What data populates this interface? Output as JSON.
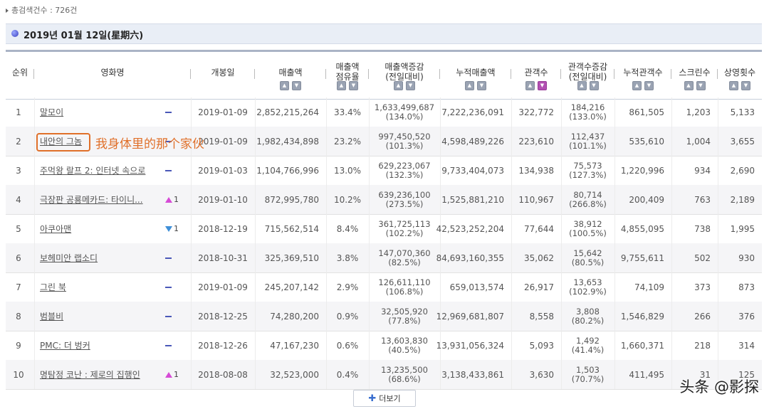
{
  "summary": {
    "total_label": "총검색건수 : 726건"
  },
  "date_header": "2019년 01월 12일(星期六)",
  "columns": {
    "rank": "순위",
    "movie": "영화명",
    "open": "개봉일",
    "sales": "매출액",
    "share_l1": "매출액",
    "share_l2": "점유율",
    "salesdiff_l1": "매출액증감",
    "salesdiff_l2": "(전일대비)",
    "cumsales": "누적매출액",
    "audience": "관객수",
    "auddiff_l1": "관객수증감",
    "auddiff_l2": "(전일대비)",
    "cumaudience": "누적관객수",
    "screens": "스크린수",
    "shows": "상영횟수"
  },
  "rows": [
    {
      "rank": "1",
      "movie": "말모이",
      "change": "",
      "change_dir": "none",
      "open": "2019-01-09",
      "sales": "2,852,215,264",
      "share": "33.4%",
      "sales_diff": "1,633,499,687",
      "sales_diff_pct": "(134.0%)",
      "cum_sales": "7,222,236,091",
      "audience": "322,772",
      "aud_diff": "184,216",
      "aud_diff_pct": "(133.0%)",
      "cum_audience": "861,505",
      "screens": "1,203",
      "shows": "5,133"
    },
    {
      "rank": "2",
      "movie": "내안의 그놈",
      "change": "",
      "change_dir": "none",
      "open": "2019-01-09",
      "sales": "1,982,434,898",
      "share": "23.2%",
      "sales_diff": "997,450,520",
      "sales_diff_pct": "(101.3%)",
      "cum_sales": "4,598,489,226",
      "audience": "223,610",
      "aud_diff": "112,437",
      "aud_diff_pct": "(101.1%)",
      "cum_audience": "535,610",
      "screens": "1,004",
      "shows": "3,655"
    },
    {
      "rank": "3",
      "movie": "주먹왕 랄프 2: 인터넷 속으로",
      "change": "",
      "change_dir": "none",
      "open": "2019-01-03",
      "sales": "1,104,766,996",
      "share": "13.0%",
      "sales_diff": "629,223,067",
      "sales_diff_pct": "(132.3%)",
      "cum_sales": "9,733,404,073",
      "audience": "134,938",
      "aud_diff": "75,573",
      "aud_diff_pct": "(127.3%)",
      "cum_audience": "1,220,996",
      "screens": "934",
      "shows": "2,690"
    },
    {
      "rank": "4",
      "movie": "극장판 공룡메카드: 타이니...",
      "change": "1",
      "change_dir": "up",
      "open": "2019-01-10",
      "sales": "872,995,780",
      "share": "10.2%",
      "sales_diff": "639,236,100",
      "sales_diff_pct": "(273.5%)",
      "cum_sales": "1,525,881,210",
      "audience": "110,967",
      "aud_diff": "80,714",
      "aud_diff_pct": "(266.8%)",
      "cum_audience": "200,409",
      "screens": "763",
      "shows": "2,189"
    },
    {
      "rank": "5",
      "movie": "아쿠아맨",
      "change": "1",
      "change_dir": "down",
      "open": "2018-12-19",
      "sales": "715,562,514",
      "share": "8.4%",
      "sales_diff": "361,725,113",
      "sales_diff_pct": "(102.2%)",
      "cum_sales": "42,523,252,204",
      "audience": "77,644",
      "aud_diff": "38,912",
      "aud_diff_pct": "(100.5%)",
      "cum_audience": "4,855,095",
      "screens": "738",
      "shows": "1,995"
    },
    {
      "rank": "6",
      "movie": "보헤미안 랩소디",
      "change": "",
      "change_dir": "none",
      "open": "2018-10-31",
      "sales": "325,369,510",
      "share": "3.8%",
      "sales_diff": "147,070,360",
      "sales_diff_pct": "(82.5%)",
      "cum_sales": "84,693,160,355",
      "audience": "35,062",
      "aud_diff": "15,642",
      "aud_diff_pct": "(80.5%)",
      "cum_audience": "9,755,611",
      "screens": "502",
      "shows": "930"
    },
    {
      "rank": "7",
      "movie": "그린 북",
      "change": "",
      "change_dir": "none",
      "open": "2019-01-09",
      "sales": "245,207,142",
      "share": "2.9%",
      "sales_diff": "126,611,110",
      "sales_diff_pct": "(106.8%)",
      "cum_sales": "659,013,574",
      "audience": "26,917",
      "aud_diff": "13,653",
      "aud_diff_pct": "(102.9%)",
      "cum_audience": "74,109",
      "screens": "373",
      "shows": "873"
    },
    {
      "rank": "8",
      "movie": "범블비",
      "change": "",
      "change_dir": "none",
      "open": "2018-12-25",
      "sales": "74,280,200",
      "share": "0.9%",
      "sales_diff": "32,505,920",
      "sales_diff_pct": "(77.8%)",
      "cum_sales": "12,969,681,807",
      "audience": "8,558",
      "aud_diff": "3,808",
      "aud_diff_pct": "(80.2%)",
      "cum_audience": "1,546,829",
      "screens": "266",
      "shows": "376"
    },
    {
      "rank": "9",
      "movie": "PMC: 더 벙커",
      "change": "",
      "change_dir": "none",
      "open": "2018-12-26",
      "sales": "47,167,230",
      "share": "0.6%",
      "sales_diff": "13,603,830",
      "sales_diff_pct": "(40.5%)",
      "cum_sales": "13,931,056,324",
      "audience": "5,093",
      "aud_diff": "1,492",
      "aud_diff_pct": "(41.4%)",
      "cum_audience": "1,660,371",
      "screens": "218",
      "shows": "314"
    },
    {
      "rank": "10",
      "movie": "명탐정 코난 : 제로의 집행인",
      "change": "1",
      "change_dir": "up",
      "open": "2018-08-08",
      "sales": "32,523,000",
      "share": "0.4%",
      "sales_diff": "13,235,500",
      "sales_diff_pct": "(68.6%)",
      "cum_sales": "3,138,433,861",
      "audience": "3,630",
      "aud_diff": "1,503",
      "aud_diff_pct": "(70.7%)",
      "cum_audience": "411,495",
      "screens": "31",
      "shows": "125"
    }
  ],
  "annotation": "我身体里的那个家伙",
  "more_button": "더보기",
  "watermark": "头条 @影探",
  "colors": {
    "accent": "#e0702a",
    "sort_active": "#b250b2",
    "up": "#d64bd6",
    "down": "#3f8fd8",
    "header_bar": "#e9eef6"
  }
}
